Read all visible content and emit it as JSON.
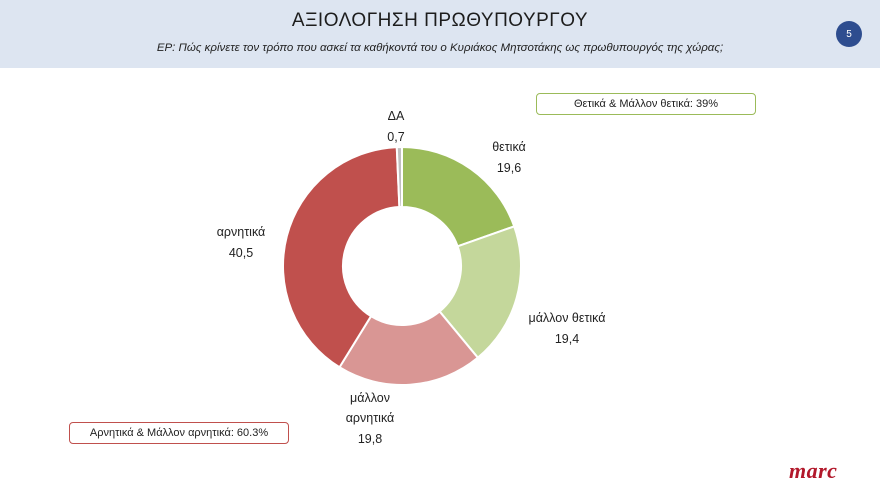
{
  "header": {
    "title": "ΑΞΙΟΛΟΓΗΣΗ ΠΡΩΘΥΠΟΥΡΓΟΥ",
    "subtitle": "ΕΡ: Πώς κρίνετε τον τρόπο που ασκεί τα καθήκοντά του ο Κυριάκος Μητσοτάκης  ως πρωθυπουργός της χώρας;",
    "page_number": "5"
  },
  "summary": {
    "positive": "Θετικά & Μάλλον θετικά: 39%",
    "negative": "Αρνητικά & Μάλλον αρνητικά: 60.3%"
  },
  "logo": "marc",
  "chart_data": {
    "type": "pie",
    "donut": true,
    "start": "top, clockwise",
    "slices": [
      {
        "label": "θετικά",
        "value": 19.6,
        "display": "19,6",
        "color": "#9bbb59"
      },
      {
        "label": "μάλλον θετικά",
        "value": 19.4,
        "display": "19,4",
        "color": "#c4d79b"
      },
      {
        "label": "μάλλον αρνητικά",
        "value": 19.8,
        "display": "19,8",
        "color": "#d99694"
      },
      {
        "label": "αρνητικά",
        "value": 40.5,
        "display": "40,5",
        "color": "#c0504d"
      },
      {
        "label": "ΔΑ",
        "value": 0.7,
        "display": "0,7",
        "color": "#bfbfbf"
      }
    ]
  }
}
